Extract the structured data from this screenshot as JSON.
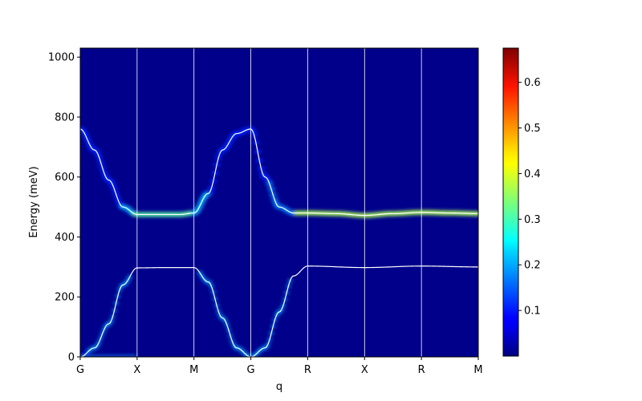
{
  "chart_data": {
    "type": "heatmap",
    "xlabel": "q",
    "ylabel": "Energy (meV)",
    "ylim": [
      0,
      1030
    ],
    "y_ticks": [
      0,
      200,
      400,
      600,
      800,
      1000
    ],
    "x_ticks": [
      "G",
      "X",
      "M",
      "G",
      "R",
      "X",
      "R",
      "M"
    ],
    "colormap": "jet",
    "colorbar": {
      "range": [
        0.0,
        0.675
      ],
      "ticks": [
        0.1,
        0.2,
        0.3,
        0.4,
        0.5,
        0.6
      ]
    },
    "grid": "vertical lines at high-symmetry points",
    "upper_branch": {
      "q_index": [
        0,
        0.25,
        0.5,
        0.75,
        1,
        1.25,
        1.5,
        1.75,
        2,
        2.25,
        2.5,
        2.75,
        3,
        3.25,
        3.5,
        3.75,
        4,
        4.5,
        5,
        5.5,
        6,
        6.5,
        7
      ],
      "energy": [
        760,
        690,
        590,
        500,
        475,
        475,
        475,
        475,
        480,
        545,
        690,
        745,
        760,
        600,
        500,
        480,
        480,
        478,
        472,
        478,
        482,
        480,
        478
      ]
    },
    "lower_branch": {
      "q_index": [
        0,
        0.25,
        0.5,
        0.75,
        1,
        1.5,
        2,
        2.25,
        2.5,
        2.75,
        3,
        3.25,
        3.5,
        3.75,
        4,
        5,
        6,
        7
      ],
      "energy": [
        0,
        30,
        110,
        240,
        297,
        298,
        298,
        250,
        130,
        30,
        0,
        30,
        150,
        270,
        303,
        298,
        303,
        300
      ]
    }
  }
}
